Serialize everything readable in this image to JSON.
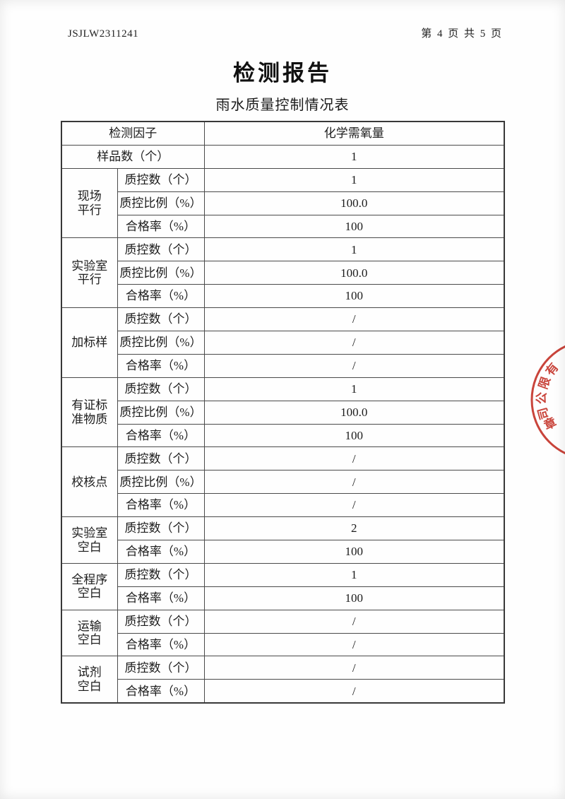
{
  "page": {
    "doc_number": "JSJLW2311241",
    "page_info": "第 4 页 共 5 页",
    "title": "检测报告",
    "subtitle": "雨水质量控制情况表"
  },
  "table": {
    "header_row": {
      "label": "检测因子",
      "value": "化学需氧量"
    },
    "sample_row": {
      "label": "样品数（个）",
      "value": "1"
    },
    "groups": [
      {
        "name": "现场\n平行",
        "rows": [
          {
            "label": "质控数（个）",
            "value": "1"
          },
          {
            "label": "质控比例（%）",
            "value": "100.0"
          },
          {
            "label": "合格率（%）",
            "value": "100"
          }
        ]
      },
      {
        "name": "实验室\n平行",
        "rows": [
          {
            "label": "质控数（个）",
            "value": "1"
          },
          {
            "label": "质控比例（%）",
            "value": "100.0"
          },
          {
            "label": "合格率（%）",
            "value": "100"
          }
        ]
      },
      {
        "name": "加标样",
        "rows": [
          {
            "label": "质控数（个）",
            "value": "/"
          },
          {
            "label": "质控比例（%）",
            "value": "/"
          },
          {
            "label": "合格率（%）",
            "value": "/"
          }
        ]
      },
      {
        "name": "有证标\n准物质",
        "rows": [
          {
            "label": "质控数（个）",
            "value": "1"
          },
          {
            "label": "质控比例（%）",
            "value": "100.0"
          },
          {
            "label": "合格率（%）",
            "value": "100"
          }
        ]
      },
      {
        "name": "校核点",
        "rows": [
          {
            "label": "质控数（个）",
            "value": "/"
          },
          {
            "label": "质控比例（%）",
            "value": "/"
          },
          {
            "label": "合格率（%）",
            "value": "/"
          }
        ]
      },
      {
        "name": "实验室\n空白",
        "rows": [
          {
            "label": "质控数（个）",
            "value": "2"
          },
          {
            "label": "合格率（%）",
            "value": "100"
          }
        ]
      },
      {
        "name": "全程序\n空白",
        "rows": [
          {
            "label": "质控数（个）",
            "value": "1"
          },
          {
            "label": "合格率（%）",
            "value": "100"
          }
        ]
      },
      {
        "name": "运输\n空白",
        "rows": [
          {
            "label": "质控数（个）",
            "value": "/"
          },
          {
            "label": "合格率（%）",
            "value": "/"
          }
        ]
      },
      {
        "name": "试剂\n空白",
        "rows": [
          {
            "label": "质控数（个）",
            "value": "/"
          },
          {
            "label": "合格率（%）",
            "value": "/"
          }
        ]
      }
    ]
  },
  "stamp": {
    "color": "#c5352b",
    "arc_chars": [
      "有",
      "限",
      "公",
      "司"
    ],
    "inner_char": "章"
  }
}
